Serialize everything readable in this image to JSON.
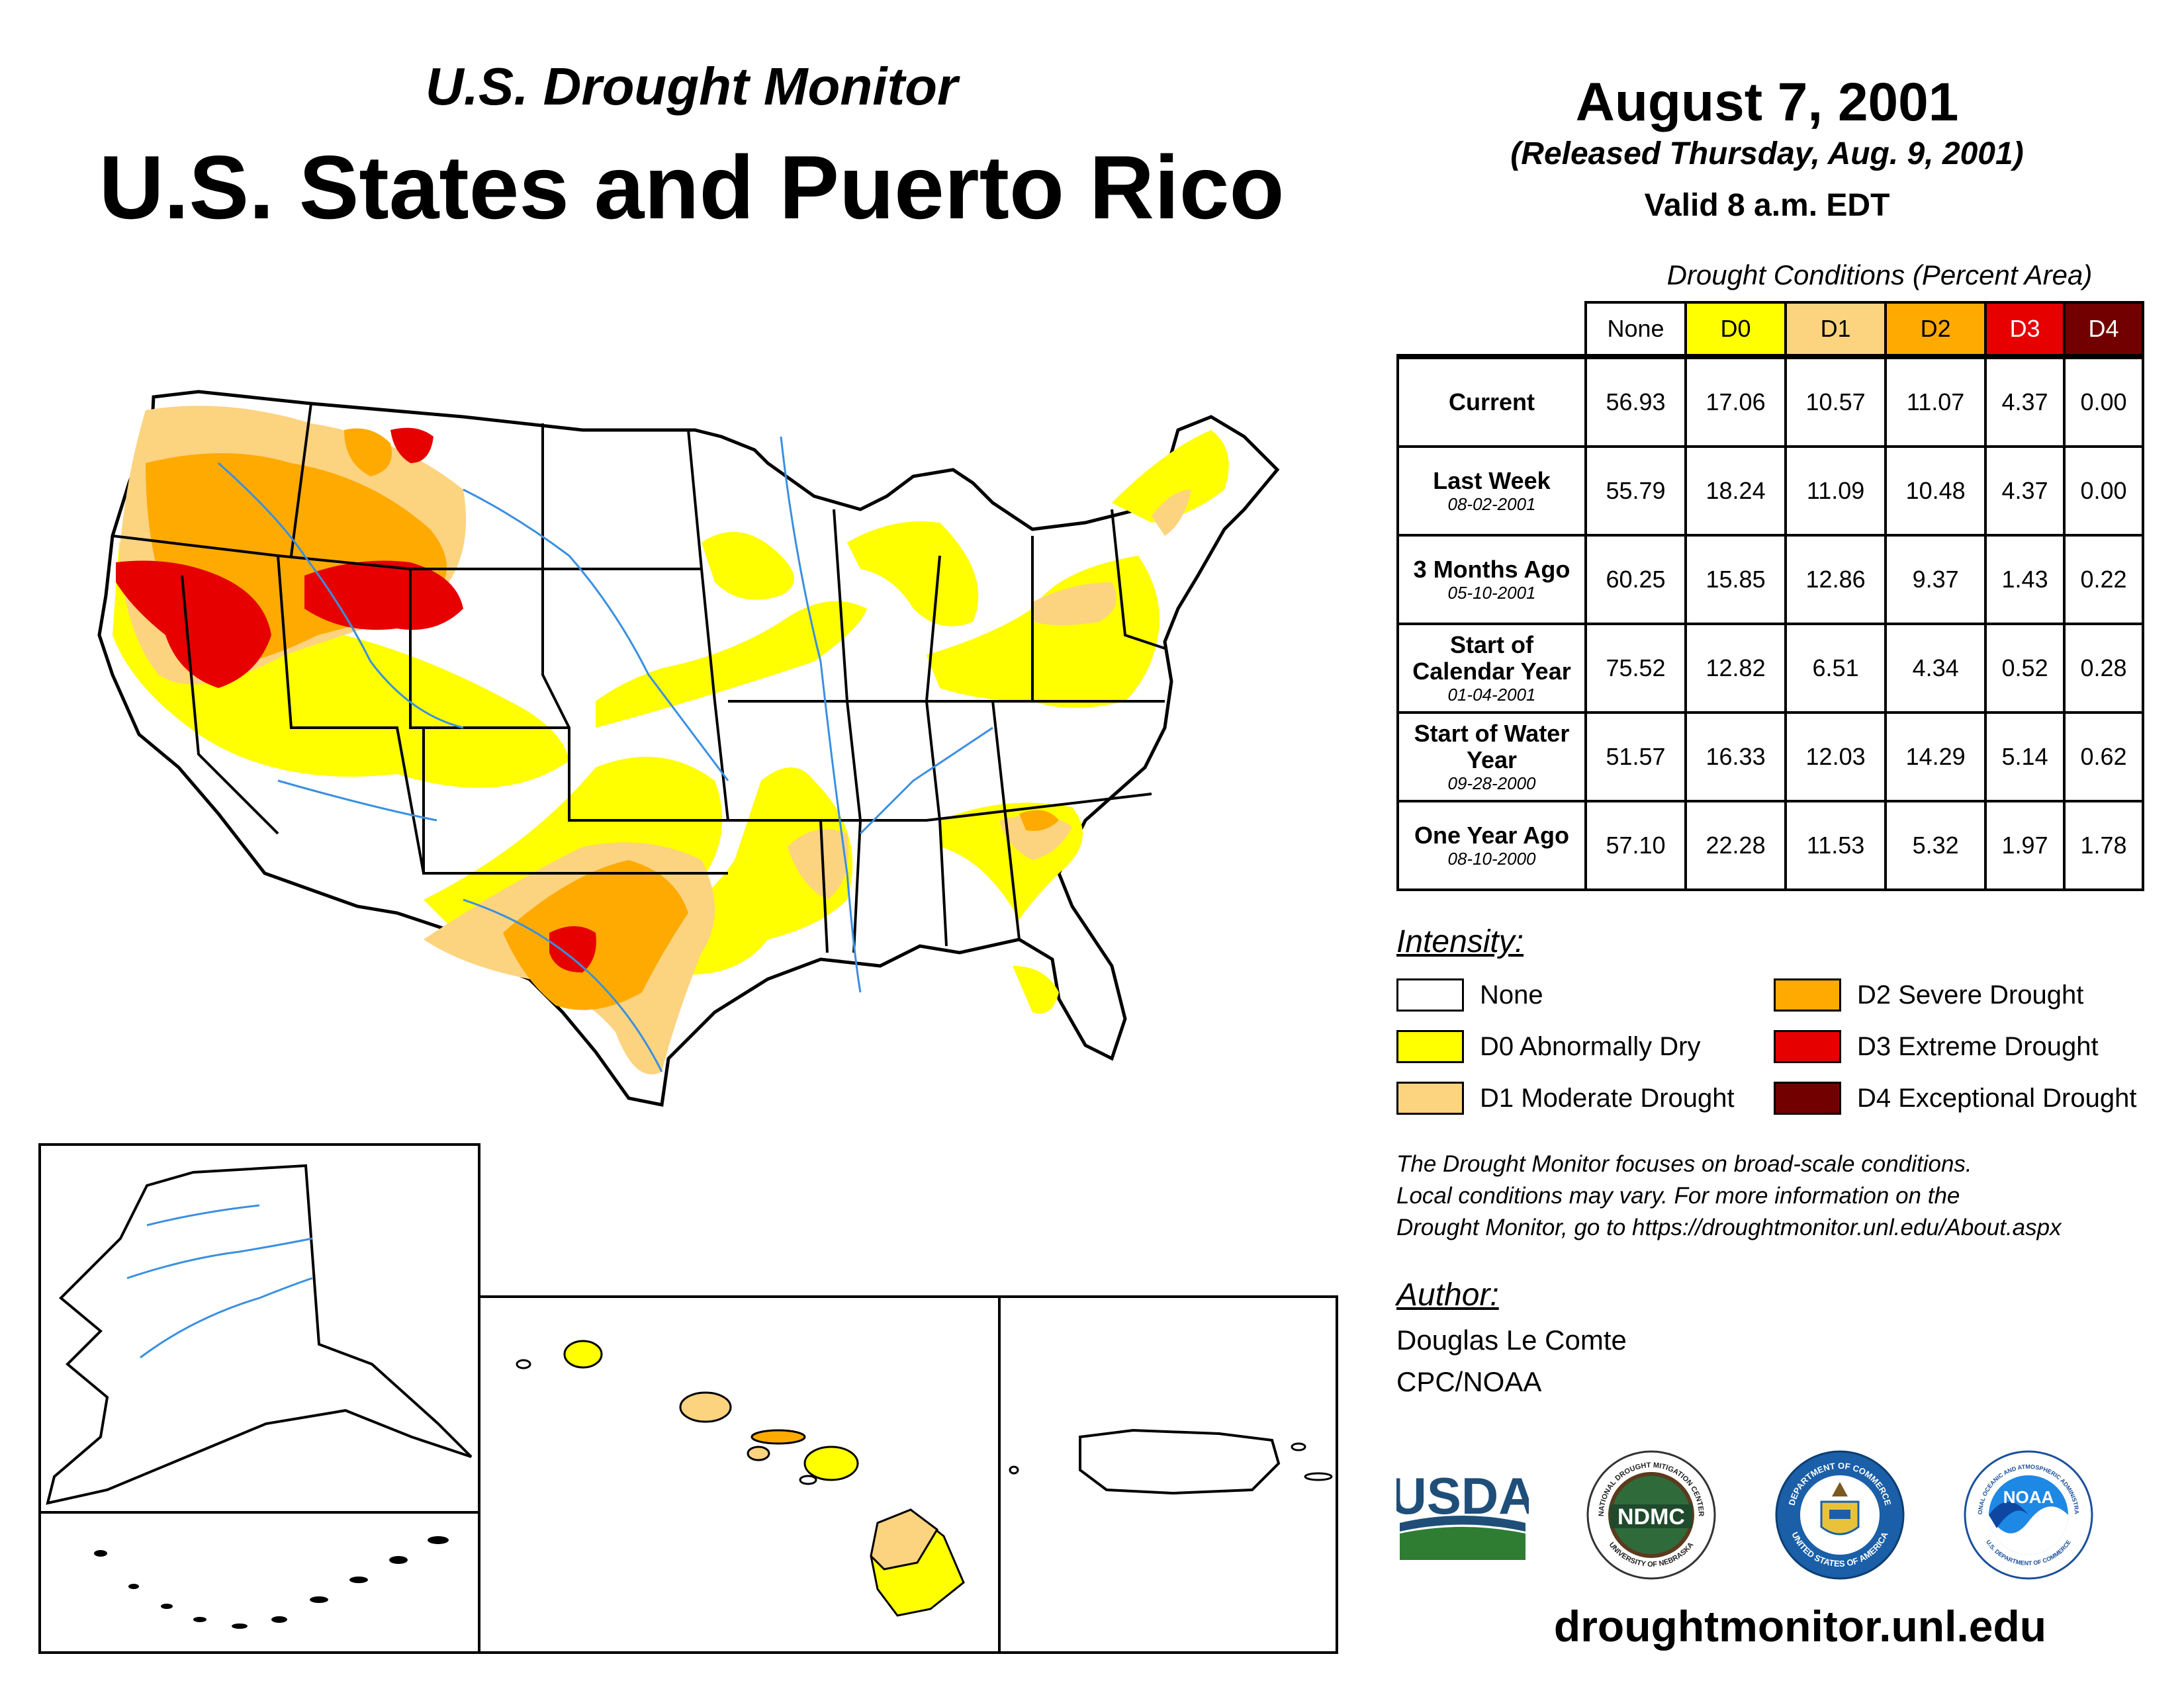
{
  "header": {
    "subtitle": "U.S. Drought Monitor",
    "title": "U.S. States and Puerto Rico",
    "date": "August 7, 2001",
    "released": "(Released Thursday, Aug. 9, 2001)",
    "valid": "Valid 8 a.m. EDT"
  },
  "table": {
    "caption": "Drought Conditions (Percent Area)",
    "columns": [
      "None",
      "D0",
      "D1",
      "D2",
      "D3",
      "D4"
    ],
    "column_colors": [
      "#ffffff",
      "#ffff00",
      "#fcd37f",
      "#ffaa00",
      "#e60000",
      "#730000"
    ],
    "rows": [
      {
        "label": "Current",
        "date": "",
        "values": [
          "56.93",
          "17.06",
          "10.57",
          "11.07",
          "4.37",
          "0.00"
        ]
      },
      {
        "label": "Last Week",
        "date": "08-02-2001",
        "values": [
          "55.79",
          "18.24",
          "11.09",
          "10.48",
          "4.37",
          "0.00"
        ]
      },
      {
        "label": "3 Months Ago",
        "date": "05-10-2001",
        "values": [
          "60.25",
          "15.85",
          "12.86",
          "9.37",
          "1.43",
          "0.22"
        ]
      },
      {
        "label": "Start of Calendar Year",
        "date": "01-04-2001",
        "values": [
          "75.52",
          "12.82",
          "6.51",
          "4.34",
          "0.52",
          "0.28"
        ]
      },
      {
        "label": "Start of Water Year",
        "date": "09-28-2000",
        "values": [
          "51.57",
          "16.33",
          "12.03",
          "14.29",
          "5.14",
          "0.62"
        ]
      },
      {
        "label": "One Year Ago",
        "date": "08-10-2000",
        "values": [
          "57.10",
          "22.28",
          "11.53",
          "5.32",
          "1.97",
          "1.78"
        ]
      }
    ]
  },
  "legend": {
    "heading": "Intensity:",
    "items": [
      {
        "label": "None",
        "color": "#ffffff"
      },
      {
        "label": "D0 Abnormally Dry",
        "color": "#ffff00"
      },
      {
        "label": "D1 Moderate Drought",
        "color": "#fcd37f"
      },
      {
        "label": "D2 Severe Drought",
        "color": "#ffaa00"
      },
      {
        "label": "D3 Extreme Drought",
        "color": "#e60000"
      },
      {
        "label": "D4 Exceptional Drought",
        "color": "#730000"
      }
    ]
  },
  "note": {
    "line1": "The Drought Monitor focuses on broad-scale conditions.",
    "line2": "Local conditions may vary. For more information on the",
    "line3": "Drought Monitor, go to https://droughtmonitor.unl.edu/About.aspx"
  },
  "author": {
    "heading": "Author:",
    "name": "Douglas Le Comte",
    "org": "CPC/NOAA"
  },
  "logos": {
    "usda": "USDA",
    "ndmc": "NDMC",
    "ndmc_ring_top": "NATIONAL DROUGHT MITIGATION CENTER",
    "ndmc_ring_bottom": "UNIVERSITY OF NEBRASKA",
    "doc_ring_top": "DEPARTMENT OF COMMERCE",
    "doc_ring_bottom": "UNITED STATES OF AMERICA",
    "noaa": "NOAA",
    "noaa_ring_top": "NATIONAL OCEANIC AND ATMOSPHERIC ADMINISTRATION",
    "noaa_ring_bottom": "U.S. DEPARTMENT OF COMMERCE"
  },
  "footer": {
    "site": "droughtmonitor.unl.edu"
  }
}
